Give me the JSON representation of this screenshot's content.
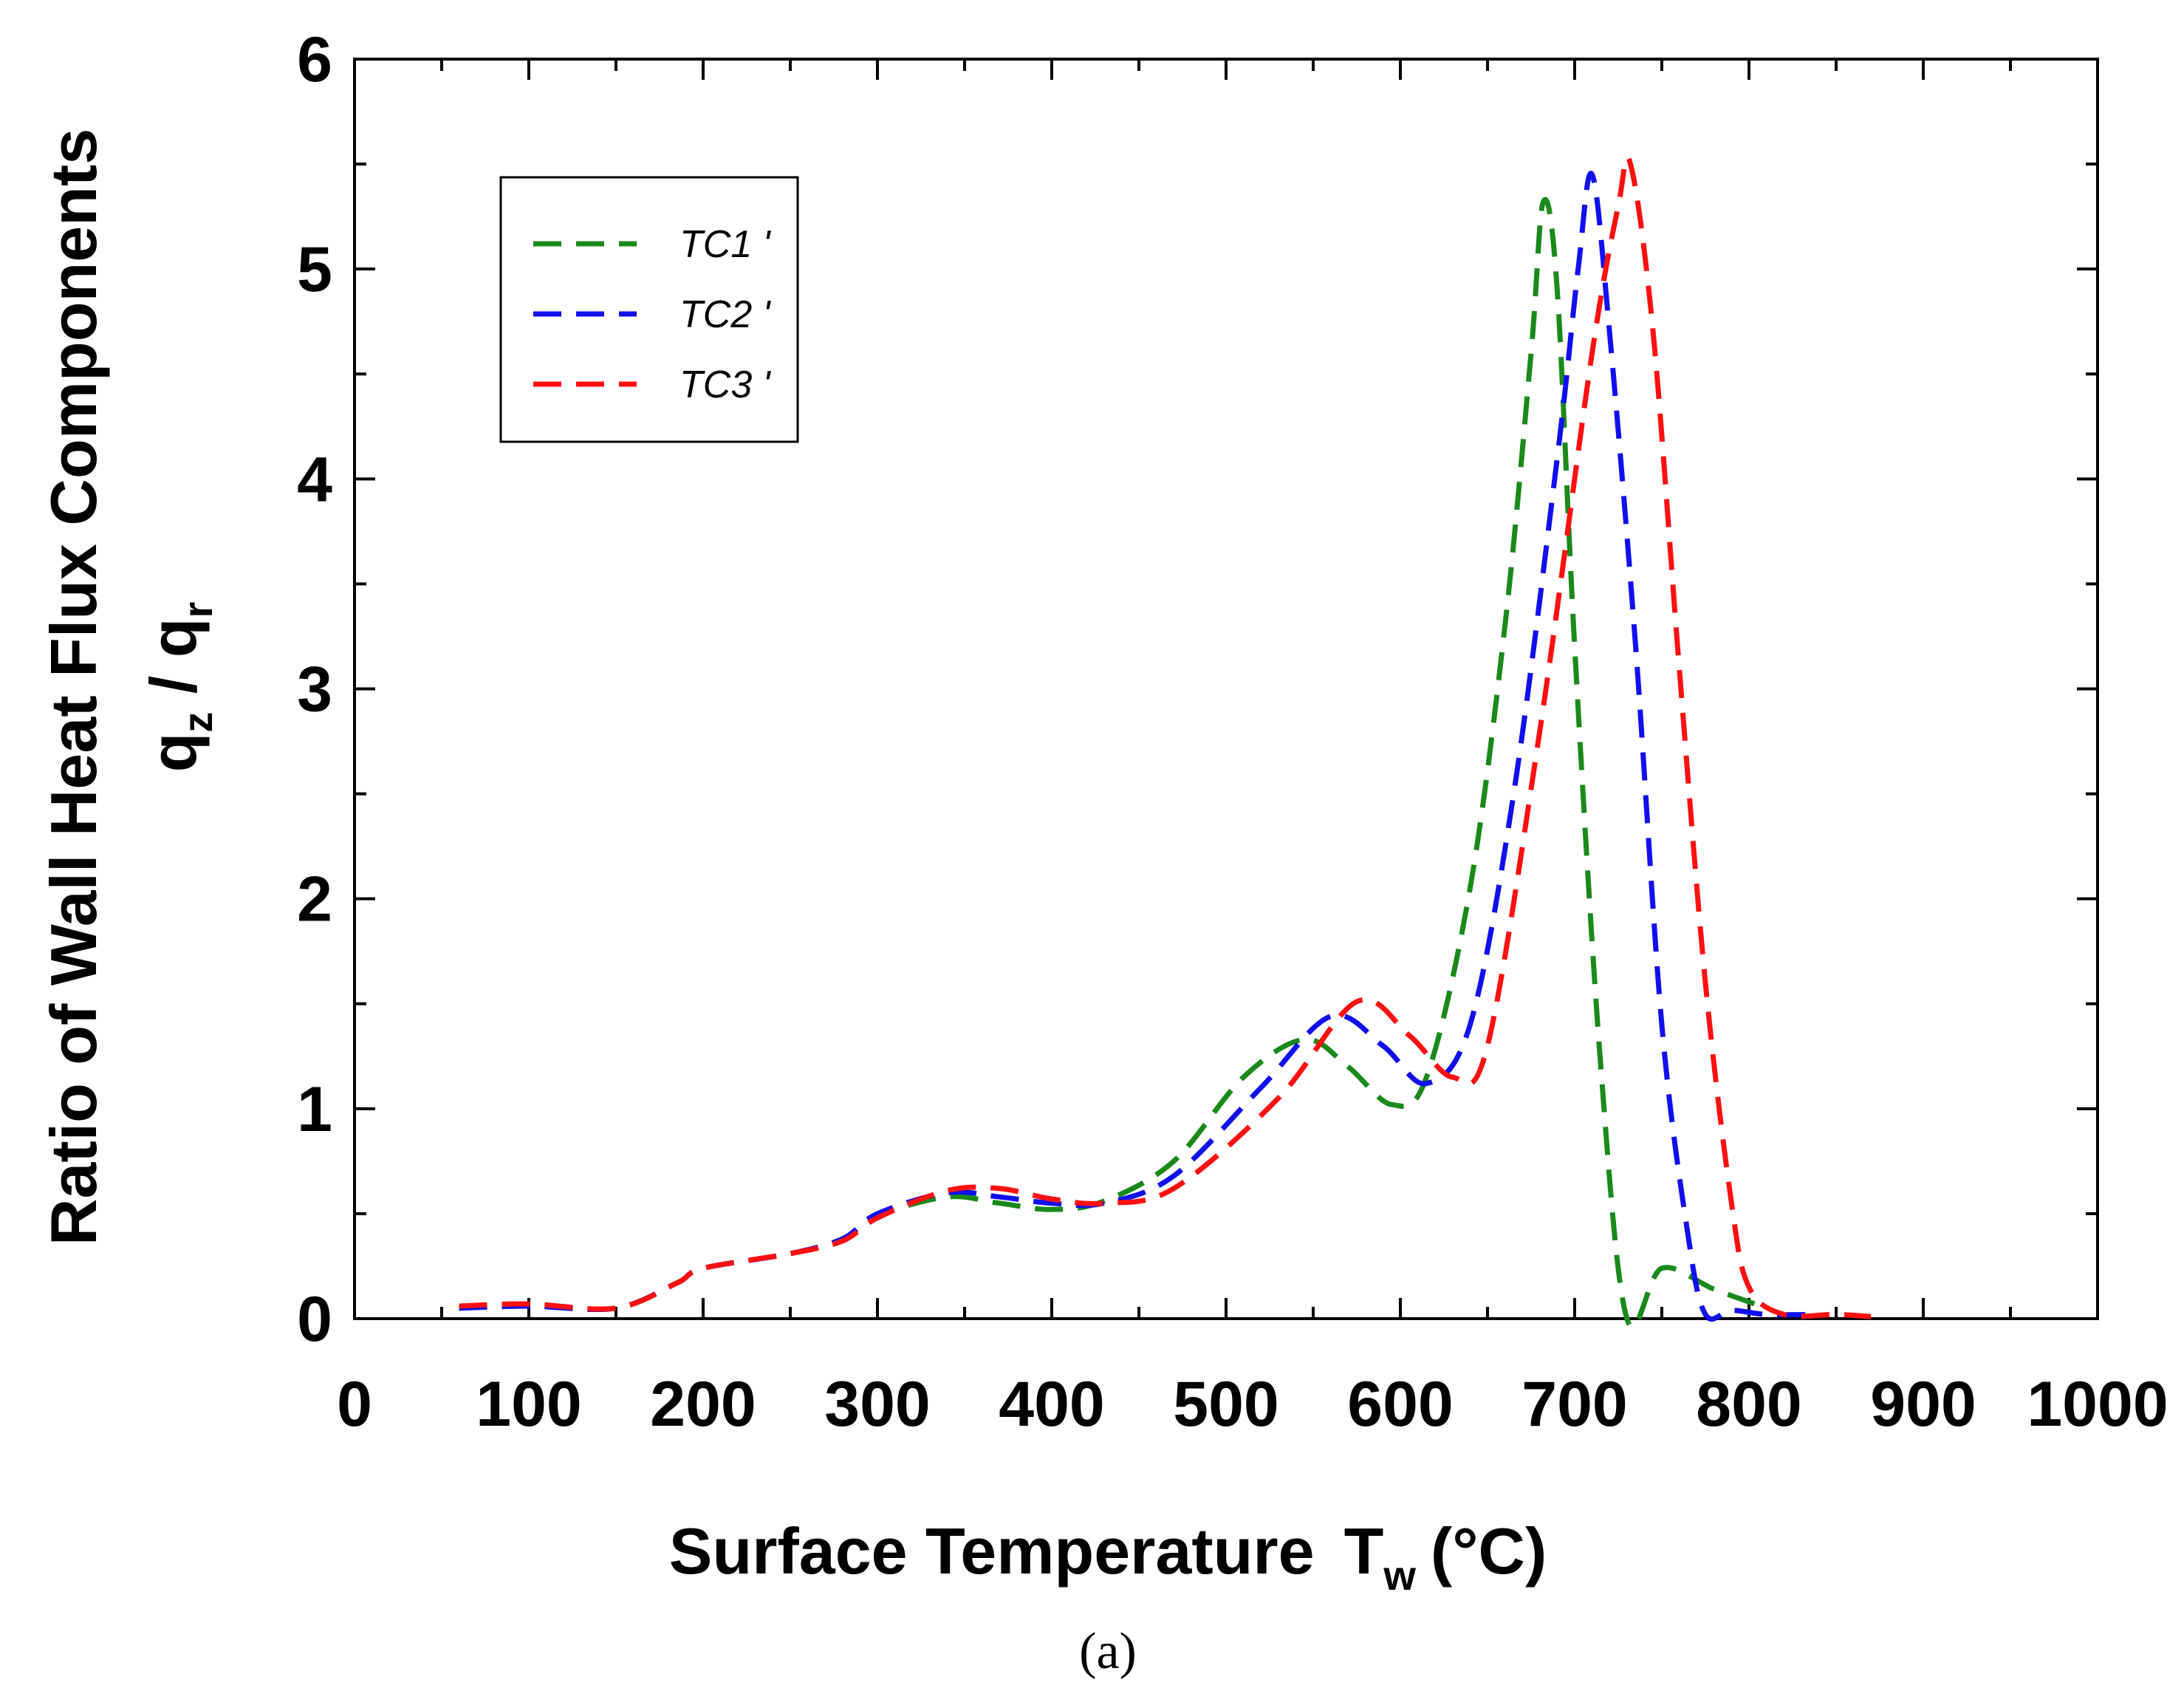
{
  "chart_data": {
    "type": "line",
    "xlabel": "Surface Temperature",
    "xlabel_symbol": "T",
    "xlabel_subscript": "w",
    "xlabel_unit": "(°C)",
    "ylabel_line1": "Ratio of Wall Heat Flux Components",
    "ylabel_line2_num": "q",
    "ylabel_line2_num_sub": "z",
    "ylabel_line2_sep": " / ",
    "ylabel_line2_den": "q",
    "ylabel_line2_den_sub": "r",
    "panel_label": "(a)",
    "xlim": [
      0,
      1000
    ],
    "ylim": [
      0,
      6
    ],
    "x_ticks": [
      0,
      100,
      200,
      300,
      400,
      500,
      600,
      700,
      800,
      900,
      1000
    ],
    "y_ticks": [
      0,
      1,
      2,
      3,
      4,
      5,
      6
    ],
    "legend_position": "top-left",
    "series": [
      {
        "name": "TC1 '",
        "color": "#1a8a1a",
        "x": [
          60,
          100,
          150,
          185,
          200,
          250,
          280,
          300,
          340,
          370,
          400,
          430,
          470,
          510,
          545,
          570,
          595,
          615,
          640,
          660,
          675,
          682,
          690,
          700,
          715,
          730,
          750,
          780,
          810
        ],
        "y": [
          0.05,
          0.06,
          0.05,
          0.17,
          0.24,
          0.31,
          0.38,
          0.49,
          0.58,
          0.55,
          0.52,
          0.56,
          0.75,
          1.15,
          1.33,
          1.2,
          1.02,
          1.15,
          2.05,
          3.3,
          4.6,
          5.32,
          4.9,
          3.2,
          1.2,
          0.0,
          0.24,
          0.14,
          0.05
        ]
      },
      {
        "name": "TC2 '",
        "color": "#1010ee",
        "x": [
          60,
          100,
          150,
          185,
          200,
          250,
          280,
          300,
          340,
          370,
          400,
          430,
          470,
          520,
          560,
          590,
          615,
          640,
          665,
          690,
          702,
          710,
          720,
          735,
          750,
          765,
          775,
          790,
          810,
          840
        ],
        "y": [
          0.05,
          0.06,
          0.05,
          0.17,
          0.24,
          0.31,
          0.38,
          0.5,
          0.6,
          0.58,
          0.55,
          0.55,
          0.68,
          1.1,
          1.44,
          1.3,
          1.12,
          1.4,
          2.5,
          4.1,
          5.0,
          5.45,
          4.7,
          3.2,
          1.4,
          0.4,
          0.02,
          0.04,
          0.02,
          0.02
        ]
      },
      {
        "name": "TC3 '",
        "color": "#ff1010",
        "x": [
          60,
          100,
          150,
          185,
          200,
          250,
          280,
          300,
          340,
          370,
          400,
          430,
          470,
          530,
          575,
          605,
          630,
          650,
          680,
          710,
          725,
          732,
          745,
          760,
          775,
          790,
          800,
          820,
          850,
          870
        ],
        "y": [
          0.06,
          0.07,
          0.05,
          0.17,
          0.24,
          0.31,
          0.37,
          0.48,
          0.61,
          0.62,
          0.57,
          0.55,
          0.62,
          1.05,
          1.51,
          1.35,
          1.15,
          1.3,
          2.8,
          4.6,
          5.3,
          5.5,
          4.7,
          3.1,
          1.6,
          0.55,
          0.15,
          0.02,
          0.02,
          0.01
        ]
      }
    ]
  }
}
